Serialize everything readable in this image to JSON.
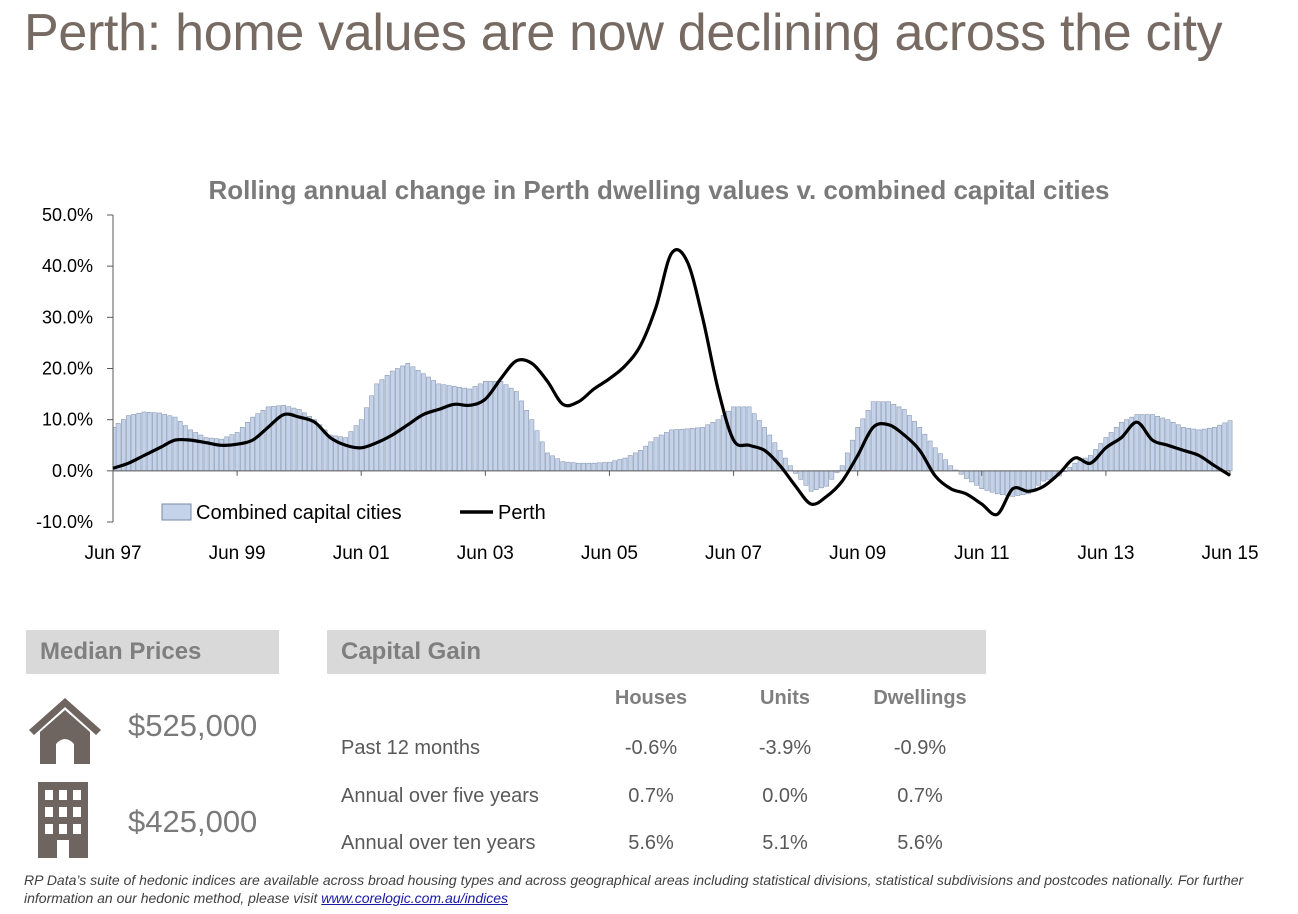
{
  "title": "Perth: home values are now declining across the city",
  "chart_data": {
    "type": "bar+line",
    "title": "Rolling annual change in Perth dwelling values v. combined capital cities",
    "ylim": [
      -10,
      50
    ],
    "y_ticks": [
      "50.0%",
      "40.0%",
      "30.0%",
      "20.0%",
      "10.0%",
      "0.0%",
      "-10.0%"
    ],
    "x_ticks": [
      "Jun 97",
      "Jun 99",
      "Jun 01",
      "Jun 03",
      "Jun 05",
      "Jun 07",
      "Jun 09",
      "Jun 11",
      "Jun 13",
      "Jun 15"
    ],
    "legend_position": "bottom-left",
    "series": [
      {
        "name": "Combined capital cities",
        "kind": "bar",
        "color": "#c5d3ea",
        "points": [
          [
            1997.5,
            8.5
          ],
          [
            1997.75,
            10.8
          ],
          [
            1998.0,
            11.5
          ],
          [
            1998.25,
            11.3
          ],
          [
            1998.5,
            10.5
          ],
          [
            1998.75,
            8.0
          ],
          [
            1999.0,
            6.5
          ],
          [
            1999.25,
            6.2
          ],
          [
            1999.5,
            7.5
          ],
          [
            1999.75,
            10.5
          ],
          [
            2000.0,
            12.5
          ],
          [
            2000.25,
            12.8
          ],
          [
            2000.5,
            12.0
          ],
          [
            2000.75,
            10.0
          ],
          [
            2001.0,
            7.0
          ],
          [
            2001.25,
            6.5
          ],
          [
            2001.5,
            10.0
          ],
          [
            2001.75,
            17.0
          ],
          [
            2002.0,
            19.5
          ],
          [
            2002.25,
            21.0
          ],
          [
            2002.5,
            19.0
          ],
          [
            2002.75,
            17.0
          ],
          [
            2003.0,
            16.5
          ],
          [
            2003.25,
            16.0
          ],
          [
            2003.5,
            17.5
          ],
          [
            2003.75,
            17.5
          ],
          [
            2004.0,
            15.5
          ],
          [
            2004.25,
            10.0
          ],
          [
            2004.5,
            3.5
          ],
          [
            2004.75,
            1.8
          ],
          [
            2005.0,
            1.5
          ],
          [
            2005.25,
            1.5
          ],
          [
            2005.5,
            1.7
          ],
          [
            2005.75,
            2.5
          ],
          [
            2006.0,
            4.0
          ],
          [
            2006.25,
            6.5
          ],
          [
            2006.5,
            8.0
          ],
          [
            2006.75,
            8.2
          ],
          [
            2007.0,
            8.5
          ],
          [
            2007.25,
            10.0
          ],
          [
            2007.5,
            12.5
          ],
          [
            2007.75,
            12.5
          ],
          [
            2008.0,
            8.5
          ],
          [
            2008.25,
            4.0
          ],
          [
            2008.5,
            -0.5
          ],
          [
            2008.75,
            -4.0
          ],
          [
            2009.0,
            -3.0
          ],
          [
            2009.25,
            1.0
          ],
          [
            2009.5,
            8.5
          ],
          [
            2009.75,
            13.5
          ],
          [
            2010.0,
            13.5
          ],
          [
            2010.25,
            12.0
          ],
          [
            2010.5,
            8.5
          ],
          [
            2010.75,
            4.5
          ],
          [
            2011.0,
            1.0
          ],
          [
            2011.25,
            -1.5
          ],
          [
            2011.5,
            -3.5
          ],
          [
            2011.75,
            -4.5
          ],
          [
            2011.75,
            -4.5
          ],
          [
            2012.0,
            -5.0
          ],
          [
            2012.25,
            -4.5
          ],
          [
            2012.5,
            -2.0
          ],
          [
            2012.75,
            -1.0
          ],
          [
            2013.0,
            1.5
          ],
          [
            2013.25,
            3.0
          ],
          [
            2013.5,
            6.5
          ],
          [
            2013.75,
            9.5
          ],
          [
            2014.0,
            11.0
          ],
          [
            2014.25,
            11.0
          ],
          [
            2014.5,
            10.0
          ],
          [
            2014.75,
            8.5
          ],
          [
            2015.0,
            8.0
          ],
          [
            2015.25,
            8.5
          ],
          [
            2015.5,
            9.8
          ]
        ]
      },
      {
        "name": "Perth",
        "kind": "line",
        "color": "#000000",
        "points": [
          [
            1997.5,
            0.5
          ],
          [
            1997.75,
            1.5
          ],
          [
            1998.0,
            3.0
          ],
          [
            1998.25,
            4.5
          ],
          [
            1998.5,
            6.0
          ],
          [
            1998.75,
            6.0
          ],
          [
            1999.0,
            5.5
          ],
          [
            1999.25,
            5.0
          ],
          [
            1999.5,
            5.2
          ],
          [
            1999.75,
            6.0
          ],
          [
            2000.0,
            8.5
          ],
          [
            2000.25,
            11.0
          ],
          [
            2000.5,
            10.5
          ],
          [
            2000.75,
            9.5
          ],
          [
            2001.0,
            6.5
          ],
          [
            2001.25,
            5.0
          ],
          [
            2001.5,
            4.5
          ],
          [
            2001.75,
            5.5
          ],
          [
            2002.0,
            7.0
          ],
          [
            2002.25,
            9.0
          ],
          [
            2002.5,
            11.0
          ],
          [
            2002.75,
            12.0
          ],
          [
            2003.0,
            13.0
          ],
          [
            2003.25,
            12.8
          ],
          [
            2003.5,
            14.0
          ],
          [
            2003.75,
            18.0
          ],
          [
            2004.0,
            21.5
          ],
          [
            2004.25,
            21.0
          ],
          [
            2004.5,
            17.5
          ],
          [
            2004.75,
            13.0
          ],
          [
            2005.0,
            13.5
          ],
          [
            2005.25,
            16.0
          ],
          [
            2005.5,
            18.0
          ],
          [
            2005.75,
            20.5
          ],
          [
            2006.0,
            24.5
          ],
          [
            2006.25,
            32.0
          ],
          [
            2006.5,
            42.5
          ],
          [
            2006.75,
            41.0
          ],
          [
            2007.0,
            30.0
          ],
          [
            2007.25,
            16.0
          ],
          [
            2007.5,
            6.0
          ],
          [
            2007.75,
            5.0
          ],
          [
            2008.0,
            4.0
          ],
          [
            2008.25,
            1.0
          ],
          [
            2008.5,
            -3.0
          ],
          [
            2008.75,
            -6.5
          ],
          [
            2009.0,
            -5.0
          ],
          [
            2009.25,
            -2.0
          ],
          [
            2009.5,
            3.0
          ],
          [
            2009.75,
            8.5
          ],
          [
            2010.0,
            9.0
          ],
          [
            2010.25,
            7.0
          ],
          [
            2010.5,
            4.0
          ],
          [
            2010.75,
            -1.0
          ],
          [
            2011.0,
            -3.5
          ],
          [
            2011.25,
            -4.5
          ],
          [
            2011.5,
            -6.5
          ],
          [
            2011.75,
            -8.5
          ],
          [
            2012.0,
            -3.5
          ],
          [
            2012.25,
            -4.0
          ],
          [
            2012.5,
            -3.0
          ],
          [
            2012.75,
            -0.5
          ],
          [
            2013.0,
            2.5
          ],
          [
            2013.25,
            1.5
          ],
          [
            2013.5,
            4.5
          ],
          [
            2013.75,
            6.5
          ],
          [
            2014.0,
            9.5
          ],
          [
            2014.25,
            6.0
          ],
          [
            2014.5,
            5.0
          ],
          [
            2014.75,
            4.0
          ],
          [
            2015.0,
            3.0
          ],
          [
            2015.25,
            1.0
          ],
          [
            2015.5,
            -0.9
          ]
        ]
      }
    ]
  },
  "median": {
    "header": "Median Prices",
    "house_price": "$525,000",
    "unit_price": "$425,000",
    "house_icon": "house-icon",
    "unit_icon": "apartment-building-icon"
  },
  "capital_gain": {
    "header": "Capital Gain",
    "columns": [
      "Houses",
      "Units",
      "Dwellings"
    ],
    "rows": [
      {
        "label": "Past 12 months",
        "values": [
          "-0.6%",
          "-3.9%",
          "-0.9%"
        ]
      },
      {
        "label": "Annual over five years",
        "values": [
          "0.7%",
          "0.0%",
          "0.7%"
        ]
      },
      {
        "label": "Annual over ten years",
        "values": [
          "5.6%",
          "5.1%",
          "5.6%"
        ]
      }
    ]
  },
  "footnote": {
    "text": "RP Data’s suite of hedonic indices are available across broad housing types and across geographical areas including statistical divisions, statistical subdivisions and postcodes nationally.  For further information an our hedonic method, please visit ",
    "link": "www.corelogic.com.au/indices"
  },
  "colors": {
    "title": "#766a62",
    "bar_fill": "#c5d3ea",
    "bar_stroke": "#7a8aa6",
    "header_bg": "#d9d9d9",
    "icon": "#6f6560"
  }
}
